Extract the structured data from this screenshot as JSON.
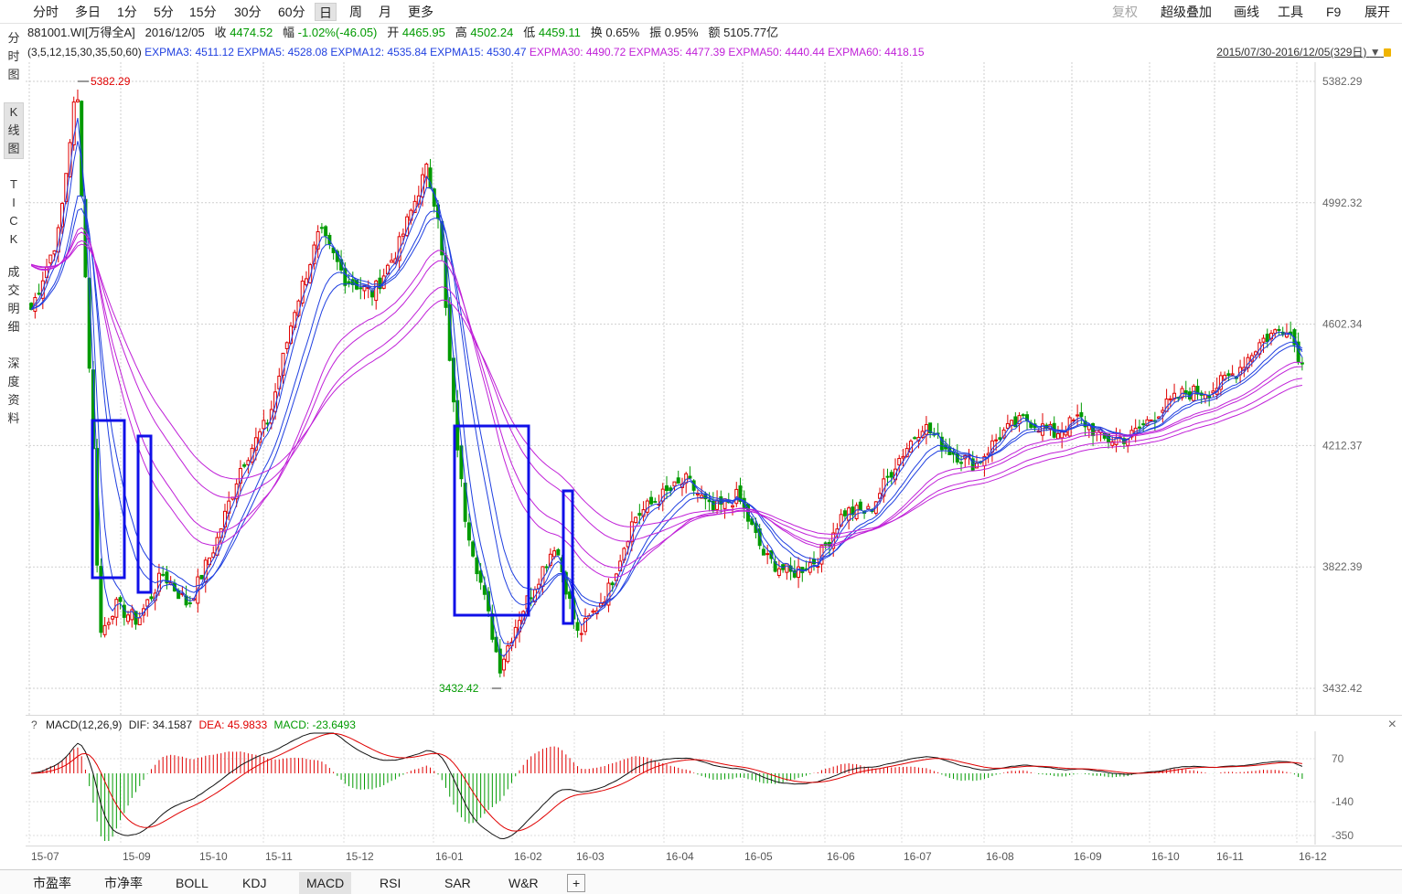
{
  "toolbar": {
    "left": [
      "分时",
      "多日",
      "1分",
      "5分",
      "15分",
      "30分",
      "60分",
      "日",
      "周",
      "月",
      "更多"
    ],
    "active": "日",
    "right": [
      "复权",
      "超级叠加",
      "画线",
      "工具",
      "F9",
      "展开"
    ],
    "disabled": "复权"
  },
  "sidebar": [
    "分时图",
    "K线图",
    "TICK",
    "成交明细",
    "深度资料"
  ],
  "sidebar_active": "K线图",
  "quote": {
    "code": "881001.WI[万得全A]",
    "date": "2016/12/05",
    "close_label": "收",
    "close": "4474.52",
    "chg_label": "幅",
    "chg": "-1.02%(-46.05)",
    "open_label": "开",
    "open": "4465.95",
    "high_label": "高",
    "high": "4502.24",
    "low_label": "低",
    "low": "4459.11",
    "turn_label": "换",
    "turn": "0.65%",
    "amp_label": "振",
    "amp": "0.95%",
    "amt_label": "额",
    "amt": "5105.77亿"
  },
  "expma": {
    "params": "(3,5,12,15,30,35,50,60)",
    "lines": [
      {
        "label": "EXPMA3: 4511.12",
        "color": "#1f3fe0"
      },
      {
        "label": "EXPMA5: 4528.08",
        "color": "#1f3fe0"
      },
      {
        "label": "EXPMA12: 4535.84",
        "color": "#1f3fe0"
      },
      {
        "label": "EXPMA15: 4530.47",
        "color": "#1f3fe0"
      },
      {
        "label": "EXPMA30: 4490.72",
        "color": "#c020d8"
      },
      {
        "label": "EXPMA35: 4477.39",
        "color": "#c020d8"
      },
      {
        "label": "EXPMA50: 4440.44",
        "color": "#c020d8"
      },
      {
        "label": "EXPMA60: 4418.15",
        "color": "#c020d8"
      }
    ]
  },
  "date_range": "2015/07/30-2016/12/05(329日)",
  "price_axis": [
    "5382.29",
    "4992.32",
    "4602.34",
    "4212.37",
    "3822.39",
    "3432.42"
  ],
  "high_marker": "5382.29",
  "low_marker": "3432.42",
  "macd": {
    "help": "?",
    "title": "MACD(12,26,9)",
    "dif": "DIF: 34.1587",
    "dea": "DEA: 45.9833",
    "macd": "MACD: -23.6493",
    "axis": [
      "70",
      "-140",
      "-350"
    ],
    "close": "×"
  },
  "time_axis": [
    "15-07",
    "15-09",
    "15-10",
    "15-11",
    "15-12",
    "16-01",
    "16-02",
    "16-03",
    "16-04",
    "16-05",
    "16-06",
    "16-07",
    "16-08",
    "16-09",
    "16-10",
    "16-11",
    "16-12"
  ],
  "bottom_tabs": [
    "市盈率",
    "市净率",
    "BOLL",
    "KDJ",
    "MACD",
    "RSI",
    "SAR",
    "W&R",
    "+"
  ],
  "bottom_active": "MACD",
  "colors": {
    "up": "#e00000",
    "down": "#009a00",
    "highlight_box": "#1010e8",
    "dif": "#111111",
    "dea": "#e00000"
  },
  "chart_data": {
    "type": "candlestick",
    "ylim": [
      3432.42,
      5382.29
    ],
    "x_labels": [
      "15-07",
      "15-09",
      "15-10",
      "15-11",
      "15-12",
      "16-01",
      "16-02",
      "16-03",
      "16-04",
      "16-05",
      "16-06",
      "16-07",
      "16-08",
      "16-09",
      "16-10",
      "16-11",
      "16-12"
    ],
    "close_trend": [
      [
        "15-07-30",
        4650
      ],
      [
        "15-08-10",
        4900
      ],
      [
        "15-08-17",
        5382
      ],
      [
        "15-08-24",
        4100
      ],
      [
        "15-08-26",
        3600
      ],
      [
        "15-09-01",
        3700
      ],
      [
        "15-09-10",
        3650
      ],
      [
        "15-09-20",
        3800
      ],
      [
        "15-09-30",
        3700
      ],
      [
        "15-10-10",
        3900
      ],
      [
        "15-10-20",
        4150
      ],
      [
        "15-10-31",
        4300
      ],
      [
        "15-11-10",
        4650
      ],
      [
        "15-11-20",
        4900
      ],
      [
        "15-11-30",
        4750
      ],
      [
        "15-12-10",
        4700
      ],
      [
        "15-12-20",
        4850
      ],
      [
        "15-12-31",
        5100
      ],
      [
        "16-01-05",
        4950
      ],
      [
        "16-01-10",
        4400
      ],
      [
        "16-01-15",
        4000
      ],
      [
        "16-01-25",
        3650
      ],
      [
        "16-01-29",
        3500
      ],
      [
        "16-02-05",
        3650
      ],
      [
        "16-02-20",
        3900
      ],
      [
        "16-02-29",
        3600
      ],
      [
        "16-03-10",
        3750
      ],
      [
        "16-03-20",
        3980
      ],
      [
        "16-03-31",
        4050
      ],
      [
        "16-04-10",
        4100
      ],
      [
        "16-04-20",
        4000
      ],
      [
        "16-04-30",
        4050
      ],
      [
        "16-05-10",
        3850
      ],
      [
        "16-05-20",
        3800
      ],
      [
        "16-05-31",
        3850
      ],
      [
        "16-06-10",
        4000
      ],
      [
        "16-06-20",
        4000
      ],
      [
        "16-06-30",
        4150
      ],
      [
        "16-07-10",
        4280
      ],
      [
        "16-07-20",
        4200
      ],
      [
        "16-07-31",
        4150
      ],
      [
        "16-08-10",
        4250
      ],
      [
        "16-08-20",
        4300
      ],
      [
        "16-08-31",
        4250
      ],
      [
        "16-09-10",
        4300
      ],
      [
        "16-09-20",
        4230
      ],
      [
        "16-09-30",
        4240
      ],
      [
        "16-10-10",
        4320
      ],
      [
        "16-10-20",
        4380
      ],
      [
        "16-10-31",
        4390
      ],
      [
        "16-11-10",
        4450
      ],
      [
        "16-11-20",
        4550
      ],
      [
        "16-11-30",
        4600
      ],
      [
        "16-12-05",
        4474.52
      ]
    ]
  }
}
